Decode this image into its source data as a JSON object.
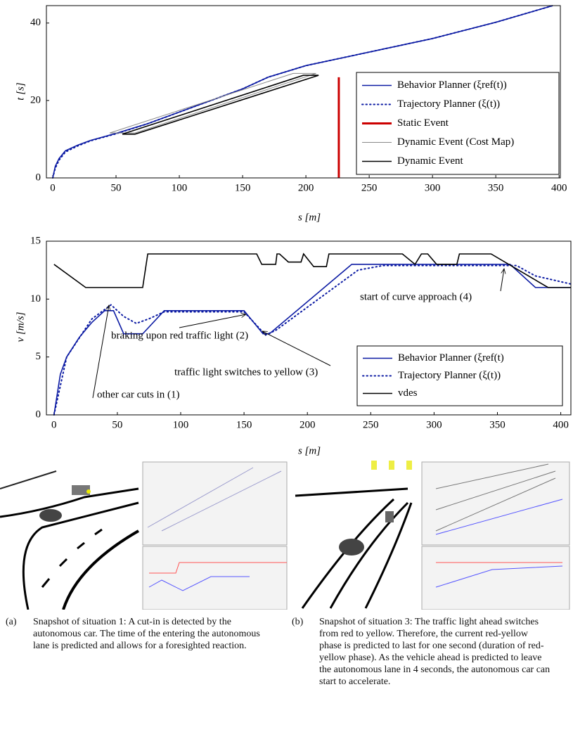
{
  "chart_data": [
    {
      "type": "line",
      "xlabel": "s [m]",
      "ylabel": "t [s]",
      "xlim": [
        -5,
        401
      ],
      "ylim": [
        0,
        44.5
      ],
      "xticks": [
        0,
        50,
        100,
        150,
        200,
        250,
        300,
        350,
        400
      ],
      "yticks": [
        0,
        20,
        40
      ],
      "legend": "lower right",
      "series": [
        {
          "name": "Behavior Planner (ξref(t))",
          "color": "#0b1aa3",
          "style": "solid",
          "x": [
            0,
            2,
            5,
            10,
            20,
            30,
            50,
            75,
            100,
            125,
            150,
            170,
            200,
            250,
            300,
            350,
            395
          ],
          "values": [
            0,
            3,
            5,
            7,
            8.5,
            9.7,
            11.5,
            14,
            17,
            20,
            23,
            26,
            29,
            32.5,
            36,
            40.2,
            44.5
          ]
        },
        {
          "name": "Trajectory Planner (ξ(t))",
          "color": "#0b1aa3",
          "style": "dotted",
          "x": [
            0,
            2,
            5,
            10,
            20,
            30,
            50,
            75,
            100,
            125,
            150,
            170,
            200,
            250,
            300,
            350,
            395
          ],
          "values": [
            0,
            2.5,
            4.6,
            6.7,
            8.3,
            9.6,
            11.4,
            14,
            17,
            20,
            23,
            26,
            29,
            32.5,
            36,
            40.2,
            44.5
          ]
        },
        {
          "name": "Static Event",
          "color": "#cc0000",
          "style": "thick",
          "x": [
            226,
            226
          ],
          "values": [
            0,
            26
          ]
        },
        {
          "name": "Dynamic Event (Cost Map)",
          "color": "#888888",
          "style": "solid",
          "x": [
            45,
            190,
            208,
            65,
            45
          ],
          "values": [
            11.6,
            27,
            27,
            11.6,
            11.6
          ]
        },
        {
          "name": "Dynamic Event",
          "color": "#000000",
          "style": "solid",
          "x": [
            55,
            198,
            210,
            65,
            55
          ],
          "values": [
            11.3,
            26.5,
            26.5,
            11.3,
            11.3
          ]
        }
      ]
    },
    {
      "type": "line",
      "xlabel": "s [m]",
      "ylabel": "v [m/s]",
      "xlim": [
        -6,
        408
      ],
      "ylim": [
        0,
        15
      ],
      "xticks": [
        0,
        50,
        100,
        150,
        200,
        250,
        300,
        350,
        400
      ],
      "yticks": [
        0,
        5,
        10,
        15
      ],
      "legend": "lower right",
      "annotations": [
        "other car cuts in (1)",
        "braking upon red traffic light (2)",
        "traffic light switches to yellow (3)",
        "start of curve approach (4)"
      ],
      "series": [
        {
          "name": "Behavior Planner (ξref(t)",
          "color": "#0b1aa3",
          "style": "solid",
          "x": [
            0,
            5,
            10,
            20,
            30,
            40,
            47,
            55,
            70,
            87,
            150,
            165,
            170,
            235,
            360,
            380,
            408
          ],
          "values": [
            0,
            3.5,
            5,
            6.7,
            8,
            9,
            9,
            7,
            7,
            9,
            9,
            7,
            7,
            13,
            13,
            11,
            11
          ]
        },
        {
          "name": "Trajectory Planner (ξ(t))",
          "color": "#0b1aa3",
          "style": "dotted",
          "x": [
            0,
            10,
            30,
            45,
            55,
            65,
            75,
            87,
            150,
            167,
            175,
            240,
            260,
            365,
            380,
            408
          ],
          "values": [
            0,
            5,
            8.3,
            9.5,
            8.5,
            7.9,
            8.3,
            8.9,
            8.9,
            6.9,
            7.3,
            12.5,
            12.9,
            12.9,
            12,
            11.3
          ]
        },
        {
          "name": "vdes",
          "color": "#000000",
          "style": "solid",
          "x": [
            0,
            25,
            70,
            74,
            160,
            164,
            175,
            176,
            178,
            185,
            195,
            197,
            205,
            215,
            217,
            275,
            285,
            290,
            295,
            302,
            318,
            320,
            345,
            390,
            408
          ],
          "values": [
            13,
            11,
            11,
            13.9,
            13.9,
            13,
            13,
            13.9,
            13.9,
            13.2,
            13.2,
            13.9,
            12.8,
            12.8,
            13.9,
            13.9,
            13,
            13.9,
            13.9,
            13,
            13,
            13.9,
            13.9,
            11,
            11
          ]
        }
      ]
    }
  ],
  "captions": [
    {
      "tag": "(a)",
      "text": "Snapshot of situation 1: A cut-in is detected by the autonomous car. The time of the entering the autonomous lane is predicted and allows for a foresighted reaction."
    },
    {
      "tag": "(b)",
      "text": "Snapshot of situation 3: The traffic light ahead switches from red to yellow. Therefore, the current red-yellow phase is predicted to last for one second (duration of red-yellow phase). As the vehicle ahead is predicted to leave the autonomous lane in 4 seconds, the autonomous car can start to accelerate."
    }
  ]
}
